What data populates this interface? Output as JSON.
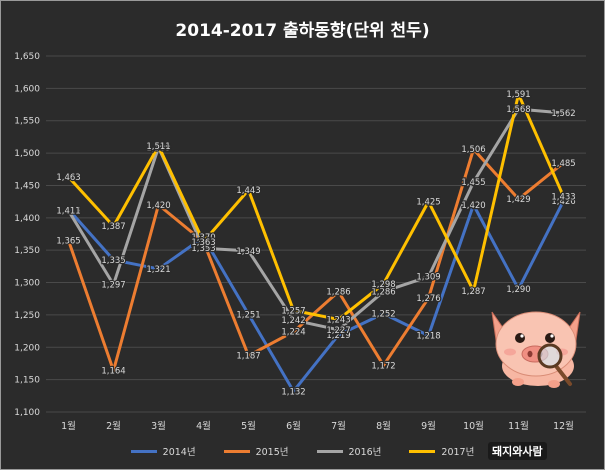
{
  "chart_data": {
    "type": "line",
    "title": "2014-2017 출하동향(단위 천두)",
    "categories": [
      "1월",
      "2월",
      "3월",
      "4월",
      "5월",
      "6월",
      "7월",
      "8월",
      "9월",
      "10월",
      "11월",
      "12월"
    ],
    "ylim": [
      1100,
      1650
    ],
    "yticks": [
      "1,100",
      "1,150",
      "1,200",
      "1,250",
      "1,300",
      "1,350",
      "1,400",
      "1,450",
      "1,500",
      "1,550",
      "1,600",
      "1,650"
    ],
    "grid": true,
    "legend_position": "bottom",
    "series": [
      {
        "name": "2014년",
        "color": "#4472c4",
        "values": [
          1413,
          1335,
          1321,
          1370,
          1251,
          1132,
          1219,
          1252,
          1218,
          1420,
          1290,
          1426
        ],
        "labels": [
          "1,413",
          "1,335",
          "1,321",
          "1,370",
          "1,251",
          "1,132",
          "1,219",
          "1,252",
          "1,218",
          "1,420",
          "1,290",
          "1,426"
        ]
      },
      {
        "name": "2015년",
        "color": "#ed7d31",
        "values": [
          1365,
          1164,
          1420,
          1363,
          1187,
          1224,
          1286,
          1172,
          1276,
          1506,
          1429,
          1485
        ],
        "labels": [
          "1,365",
          "1,164",
          "1,420",
          "1,363",
          "1,187",
          "1,224",
          "1,286",
          "1,172",
          "1,276",
          "1,506",
          "1,429",
          "1,485"
        ]
      },
      {
        "name": "2016년",
        "color": "#a5a5a5",
        "values": [
          1411,
          1297,
          1509,
          1353,
          1349,
          1242,
          1227,
          1286,
          1309,
          1455,
          1568,
          1562
        ],
        "labels": [
          "1,411",
          "1,297",
          "1,509",
          "1,353",
          "1,349",
          "1,242",
          "1,227",
          "1,286",
          "1,309",
          "1,455",
          "1,568",
          "1,562"
        ]
      },
      {
        "name": "2017년",
        "color": "#ffc000",
        "values": [
          1463,
          1387,
          1511,
          1363,
          1443,
          1257,
          1243,
          1298,
          1425,
          1287,
          1591,
          1433
        ],
        "labels": [
          "1,463",
          "1,387",
          "1,511",
          "1,363",
          "1,443",
          "1,257",
          "1,243",
          "1,298",
          "1,425",
          "1,287",
          "1,591",
          "1,433"
        ]
      }
    ]
  },
  "brand": {
    "text": "돼지와사람"
  },
  "mascot": {
    "icon": "pig-with-magnifier-icon"
  }
}
